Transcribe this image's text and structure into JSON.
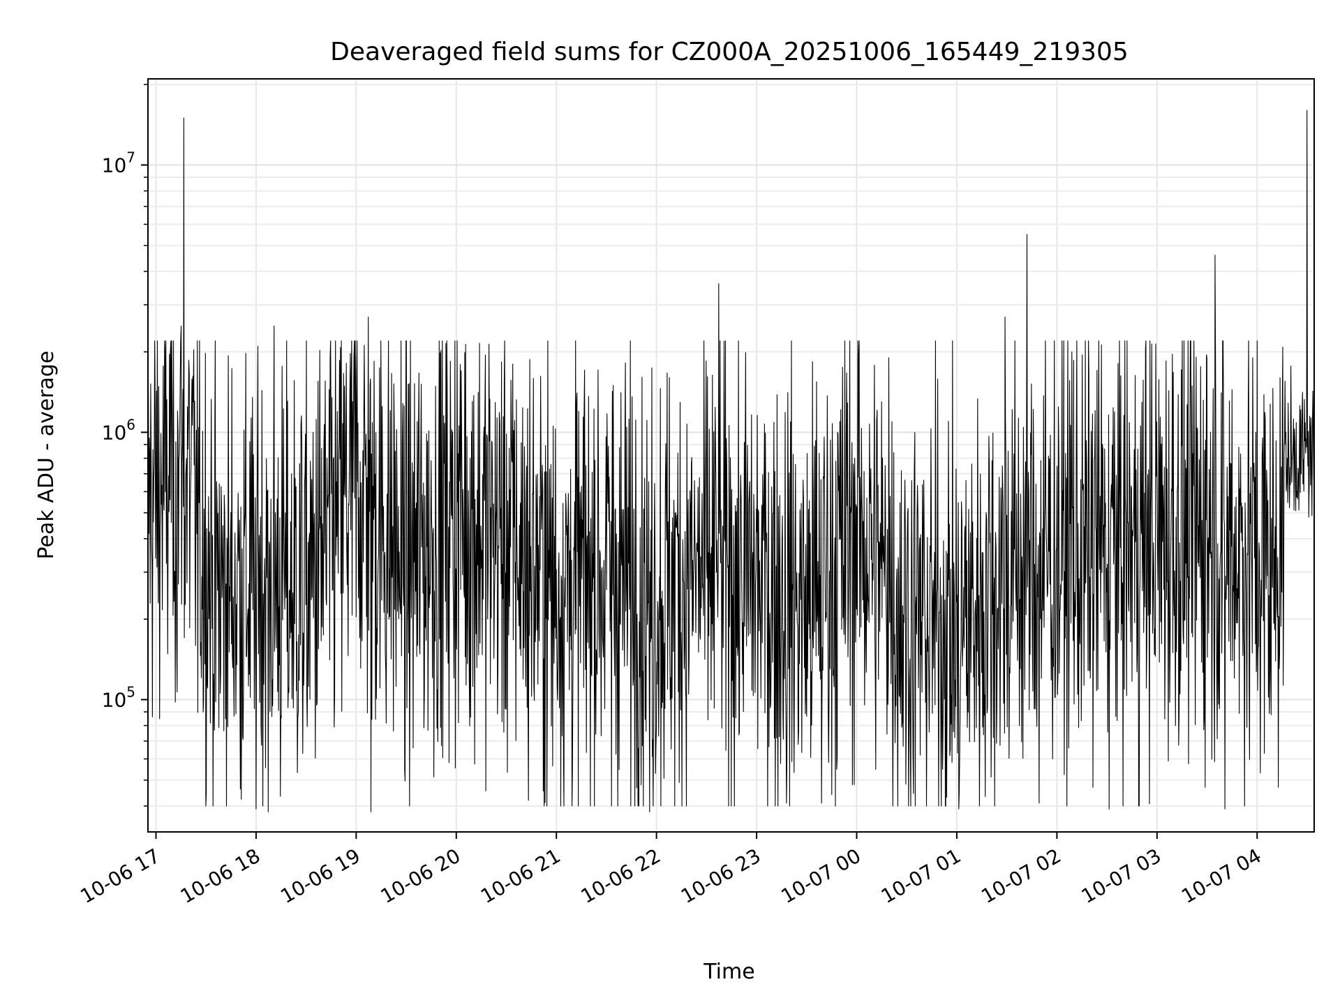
{
  "chart_data": {
    "type": "line",
    "title": "Deaveraged field sums for CZ000A_20251006_165449_219305",
    "xlabel": "Time",
    "ylabel": "Peak ADU - average",
    "yscale": "log",
    "ylim": [
      32000,
      21000000
    ],
    "xlim_hours": [
      16.92,
      4.57
    ],
    "x_ticks": [
      {
        "hour": 17,
        "label": "10-06 17"
      },
      {
        "hour": 18,
        "label": "10-06 18"
      },
      {
        "hour": 19,
        "label": "10-06 19"
      },
      {
        "hour": 20,
        "label": "10-06 20"
      },
      {
        "hour": 21,
        "label": "10-06 21"
      },
      {
        "hour": 22,
        "label": "10-06 22"
      },
      {
        "hour": 23,
        "label": "10-06 23"
      },
      {
        "hour": 24,
        "label": "10-07 00"
      },
      {
        "hour": 25,
        "label": "10-07 01"
      },
      {
        "hour": 26,
        "label": "10-07 02"
      },
      {
        "hour": 27,
        "label": "10-07 03"
      },
      {
        "hour": 28,
        "label": "10-07 04"
      }
    ],
    "y_ticks": [
      {
        "value": 100000,
        "base": "10",
        "exp": "5"
      },
      {
        "value": 1000000,
        "base": "10",
        "exp": "6"
      },
      {
        "value": 10000000,
        "base": "10",
        "exp": "7"
      }
    ],
    "grid": true,
    "line_color": "#000000",
    "series": [
      {
        "name": "Peak ADU - average",
        "x_start_hour": 16.92,
        "x_end_hour": 28.57,
        "envelope": [
          {
            "hour": 16.92,
            "median": 550000
          },
          {
            "hour": 17.3,
            "median": 700000
          },
          {
            "hour": 17.6,
            "median": 250000
          },
          {
            "hour": 18.0,
            "median": 280000
          },
          {
            "hour": 18.5,
            "median": 260000
          },
          {
            "hour": 19.0,
            "median": 650000
          },
          {
            "hour": 19.5,
            "median": 320000
          },
          {
            "hour": 20.0,
            "median": 500000
          },
          {
            "hour": 20.5,
            "median": 400000
          },
          {
            "hour": 21.0,
            "median": 260000
          },
          {
            "hour": 21.5,
            "median": 300000
          },
          {
            "hour": 22.0,
            "median": 250000
          },
          {
            "hour": 22.5,
            "median": 300000
          },
          {
            "hour": 23.0,
            "median": 280000
          },
          {
            "hour": 23.5,
            "median": 220000
          },
          {
            "hour": 24.0,
            "median": 450000
          },
          {
            "hour": 24.5,
            "median": 200000
          },
          {
            "hour": 25.0,
            "median": 180000
          },
          {
            "hour": 25.5,
            "median": 300000
          },
          {
            "hour": 26.0,
            "median": 350000
          },
          {
            "hour": 26.5,
            "median": 380000
          },
          {
            "hour": 27.0,
            "median": 400000
          },
          {
            "hour": 27.5,
            "median": 450000
          },
          {
            "hour": 28.2,
            "median": 300000
          },
          {
            "hour": 28.3,
            "median": 800000
          },
          {
            "hour": 28.57,
            "median": 850000
          }
        ],
        "spikes": [
          {
            "hour": 17.28,
            "value": 15000000
          },
          {
            "hour": 17.25,
            "value": 2500000
          },
          {
            "hour": 17.15,
            "value": 2200000
          },
          {
            "hour": 18.02,
            "value": 2100000
          },
          {
            "hour": 18.18,
            "value": 2500000
          },
          {
            "hour": 19.12,
            "value": 2700000
          },
          {
            "hour": 18.98,
            "value": 2200000
          },
          {
            "hour": 20.05,
            "value": 1700000
          },
          {
            "hour": 21.57,
            "value": 1500000
          },
          {
            "hour": 22.62,
            "value": 3600000
          },
          {
            "hour": 24.02,
            "value": 2000000
          },
          {
            "hour": 24.32,
            "value": 1900000
          },
          {
            "hour": 25.48,
            "value": 2700000
          },
          {
            "hour": 25.7,
            "value": 5500000
          },
          {
            "hour": 26.15,
            "value": 2000000
          },
          {
            "hour": 27.58,
            "value": 4600000
          },
          {
            "hour": 27.5,
            "value": 1900000
          },
          {
            "hour": 28.23,
            "value": 1600000
          },
          {
            "hour": 28.5,
            "value": 16000000
          },
          {
            "hour": 18.12,
            "value": 38000
          },
          {
            "hour": 18.0,
            "value": 39000
          },
          {
            "hour": 19.15,
            "value": 38000
          },
          {
            "hour": 20.72,
            "value": 42000
          },
          {
            "hour": 21.55,
            "value": 40000
          },
          {
            "hour": 21.93,
            "value": 38000
          },
          {
            "hour": 22.3,
            "value": 40000
          },
          {
            "hour": 23.3,
            "value": 41000
          },
          {
            "hour": 23.65,
            "value": 41000
          },
          {
            "hour": 25.02,
            "value": 39000
          },
          {
            "hour": 25.82,
            "value": 41000
          },
          {
            "hour": 26.52,
            "value": 39000
          },
          {
            "hour": 26.82,
            "value": 40000
          },
          {
            "hour": 27.68,
            "value": 39000
          }
        ]
      }
    ]
  }
}
